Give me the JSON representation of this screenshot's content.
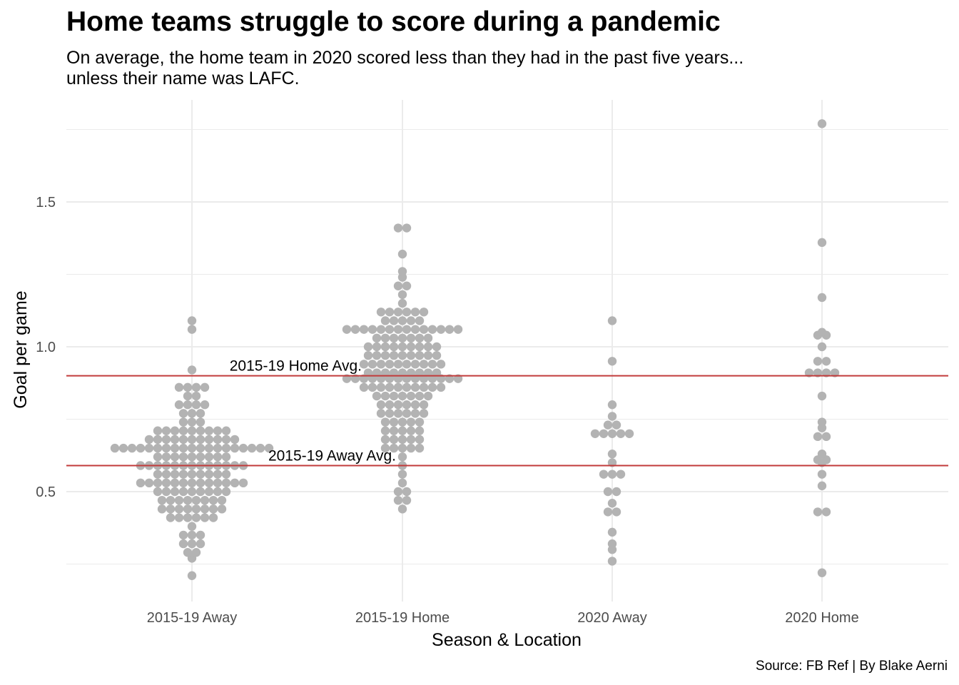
{
  "title": "Home teams struggle to score during a pandemic",
  "subtitle_lines": [
    "On average, the home team in 2020 scored less than they had in the past five years...",
    "unless their name was LAFC."
  ],
  "caption": "Source: FB Ref | By Blake Aerni",
  "colors": {
    "dots": "#b3b3b3",
    "reference_line": "#c23b3b",
    "grid": "#ebebeb"
  },
  "chart_data": {
    "type": "scatter",
    "style": "beeswarm",
    "xlabel": "Season & Location",
    "ylabel": "Goal per game",
    "categories": [
      "2015-19 Away",
      "2015-19 Home",
      "2020 Away",
      "2020 Home"
    ],
    "ylim": [
      0.14,
      1.79
    ],
    "yticks": [
      0.5,
      1.0,
      1.5
    ],
    "ytick_labels": [
      "0.5",
      "1.0",
      "1.5"
    ],
    "grid": true,
    "legend": "none",
    "reference_lines": [
      {
        "label": "2015-19 Home Avg.",
        "y": 0.9
      },
      {
        "label": "2015-19 Away Avg.",
        "y": 0.59
      }
    ],
    "series": [
      {
        "category": "2015-19 Away",
        "values": [
          0.21,
          0.27,
          0.29,
          0.29,
          0.32,
          0.32,
          0.32,
          0.35,
          0.35,
          0.35,
          0.38,
          0.41,
          0.41,
          0.41,
          0.41,
          0.41,
          0.41,
          0.44,
          0.44,
          0.44,
          0.44,
          0.44,
          0.44,
          0.44,
          0.44,
          0.47,
          0.47,
          0.47,
          0.47,
          0.47,
          0.47,
          0.47,
          0.47,
          0.5,
          0.5,
          0.5,
          0.5,
          0.5,
          0.5,
          0.5,
          0.5,
          0.5,
          0.53,
          0.53,
          0.53,
          0.53,
          0.53,
          0.53,
          0.53,
          0.53,
          0.53,
          0.53,
          0.53,
          0.53,
          0.53,
          0.56,
          0.56,
          0.56,
          0.56,
          0.56,
          0.56,
          0.56,
          0.56,
          0.56,
          0.59,
          0.59,
          0.59,
          0.59,
          0.59,
          0.59,
          0.59,
          0.59,
          0.59,
          0.59,
          0.59,
          0.59,
          0.59,
          0.62,
          0.62,
          0.62,
          0.62,
          0.62,
          0.62,
          0.62,
          0.62,
          0.62,
          0.65,
          0.65,
          0.65,
          0.65,
          0.65,
          0.65,
          0.65,
          0.65,
          0.65,
          0.65,
          0.65,
          0.65,
          0.65,
          0.65,
          0.65,
          0.65,
          0.65,
          0.65,
          0.65,
          0.68,
          0.68,
          0.68,
          0.68,
          0.68,
          0.68,
          0.68,
          0.68,
          0.68,
          0.68,
          0.68,
          0.71,
          0.71,
          0.71,
          0.71,
          0.71,
          0.71,
          0.71,
          0.71,
          0.71,
          0.74,
          0.74,
          0.74,
          0.77,
          0.77,
          0.77,
          0.8,
          0.8,
          0.8,
          0.8,
          0.83,
          0.83,
          0.86,
          0.86,
          0.86,
          0.86,
          0.92,
          1.06,
          1.09
        ]
      },
      {
        "category": "2015-19 Home",
        "values": [
          0.44,
          0.47,
          0.47,
          0.5,
          0.5,
          0.53,
          0.56,
          0.59,
          0.62,
          0.65,
          0.65,
          0.65,
          0.65,
          0.65,
          0.68,
          0.68,
          0.68,
          0.68,
          0.68,
          0.71,
          0.71,
          0.71,
          0.71,
          0.71,
          0.74,
          0.74,
          0.74,
          0.74,
          0.74,
          0.77,
          0.77,
          0.77,
          0.77,
          0.77,
          0.77,
          0.8,
          0.8,
          0.8,
          0.8,
          0.8,
          0.8,
          0.83,
          0.83,
          0.83,
          0.83,
          0.83,
          0.83,
          0.83,
          0.86,
          0.86,
          0.86,
          0.86,
          0.86,
          0.86,
          0.86,
          0.86,
          0.86,
          0.86,
          0.89,
          0.89,
          0.89,
          0.89,
          0.89,
          0.89,
          0.89,
          0.89,
          0.89,
          0.89,
          0.89,
          0.89,
          0.89,
          0.89,
          0.91,
          0.91,
          0.91,
          0.91,
          0.91,
          0.91,
          0.91,
          0.91,
          0.91,
          0.94,
          0.94,
          0.94,
          0.94,
          0.94,
          0.94,
          0.94,
          0.94,
          0.94,
          0.94,
          0.97,
          0.97,
          0.97,
          0.97,
          0.97,
          0.97,
          0.97,
          0.97,
          0.97,
          1.0,
          1.0,
          1.0,
          1.0,
          1.0,
          1.0,
          1.0,
          1.0,
          1.0,
          1.03,
          1.03,
          1.03,
          1.03,
          1.03,
          1.03,
          1.03,
          1.06,
          1.06,
          1.06,
          1.06,
          1.06,
          1.06,
          1.06,
          1.06,
          1.06,
          1.06,
          1.06,
          1.06,
          1.06,
          1.06,
          1.09,
          1.09,
          1.09,
          1.09,
          1.09,
          1.12,
          1.12,
          1.12,
          1.12,
          1.12,
          1.12,
          1.15,
          1.18,
          1.21,
          1.21,
          1.24,
          1.26,
          1.32,
          1.41,
          1.41
        ]
      },
      {
        "category": "2020 Away",
        "values": [
          0.26,
          0.3,
          0.32,
          0.36,
          0.43,
          0.43,
          0.46,
          0.5,
          0.5,
          0.56,
          0.56,
          0.56,
          0.6,
          0.63,
          0.7,
          0.7,
          0.7,
          0.7,
          0.7,
          0.73,
          0.73,
          0.76,
          0.8,
          0.95,
          1.09
        ]
      },
      {
        "category": "2020 Home",
        "values": [
          0.22,
          0.43,
          0.43,
          0.52,
          0.56,
          0.6,
          0.61,
          0.61,
          0.63,
          0.69,
          0.69,
          0.72,
          0.74,
          0.83,
          0.91,
          0.91,
          0.91,
          0.91,
          0.95,
          0.95,
          1.0,
          1.04,
          1.04,
          1.05,
          1.17,
          1.36,
          1.77
        ]
      }
    ]
  }
}
